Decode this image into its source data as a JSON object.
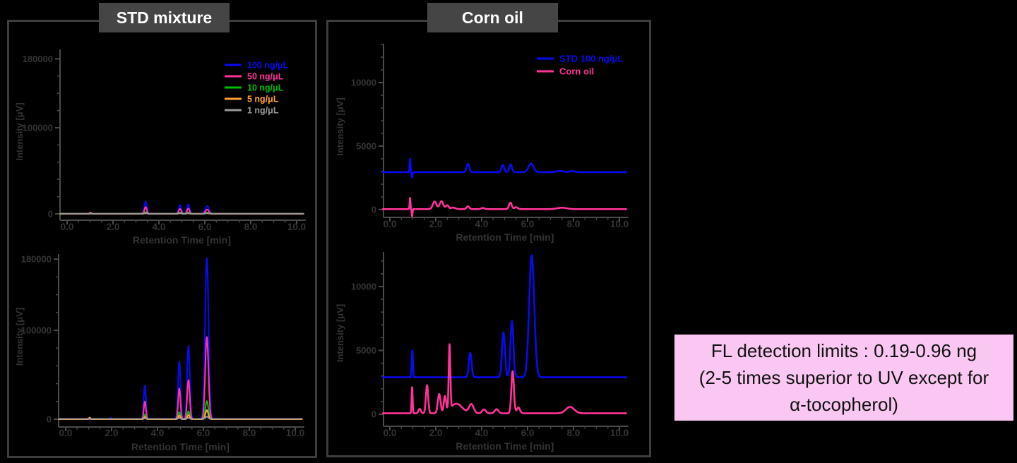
{
  "palette": {
    "blue": "#0a0af0",
    "pink": "#ff3399",
    "green": "#00be00",
    "orange": "#ffa332",
    "gray": "#999999",
    "axis": "#4a4a4a",
    "text": "#333333",
    "panel_border": "#3d3d3d",
    "title_bg": "#454545",
    "title_text": "#ffffff",
    "note_bg": "#fac7f2",
    "note_text": "#111111",
    "background": "#000000"
  },
  "panels": [
    {
      "title": "STD mixture"
    },
    {
      "title": "Corn oil"
    }
  ],
  "note_box": {
    "line1": "FL detection limits : 0.19-0.96 ng",
    "line2": "(2-5 times superior to UV except for",
    "line3": "α-tocopherol)"
  },
  "chart_data": [
    {
      "type": "line",
      "panel": "STD mixture",
      "xlabel": "Retention Time [min]",
      "ylabel": "Intensity [μV]",
      "xlim": [
        -0.3,
        10.3
      ],
      "xticks": [
        0,
        2,
        4,
        6,
        8,
        10
      ],
      "xtick_labels": [
        "0.0",
        "2.0",
        "4.0",
        "6.0",
        "8.0",
        "10.0"
      ],
      "xminor_step": 0.5,
      "ylim": [
        0,
        190000
      ],
      "yticks": [
        [
          0,
          "0"
        ],
        [
          100000,
          "100000"
        ],
        [
          180000,
          "180000"
        ]
      ],
      "yminor_step": 20000,
      "grid": false,
      "legend_position": "upper right",
      "legend": [
        {
          "label": "100 ng/μL",
          "color": "blue"
        },
        {
          "label": "50 ng/μL",
          "color": "pink"
        },
        {
          "label": "10 ng/μL",
          "color": "green"
        },
        {
          "label": "5 ng/μL",
          "color": "orange"
        },
        {
          "label": "1 ng/μL",
          "color": "gray"
        }
      ],
      "series": [
        {
          "name": "100 ng/μL",
          "color": "blue",
          "offset": 0,
          "peaks": [
            [
              1.0,
              900,
              0.025
            ],
            [
              3.42,
              14300,
              0.055
            ],
            [
              4.92,
              10300,
              0.06
            ],
            [
              5.28,
              10900,
              0.06
            ],
            [
              6.1,
              9100,
              0.08
            ]
          ]
        },
        {
          "name": "50 ng/μL",
          "color": "pink",
          "offset": 0,
          "peaks": [
            [
              1.0,
              1600,
              0.025
            ],
            [
              3.42,
              8000,
              0.05
            ],
            [
              4.92,
              5700,
              0.055
            ],
            [
              5.28,
              6100,
              0.055
            ],
            [
              6.1,
              5000,
              0.075
            ]
          ]
        },
        {
          "name": "10 ng/μL",
          "color": "green",
          "offset": 0,
          "peaks": [
            [
              3.42,
              1900,
              0.05
            ],
            [
              4.92,
              1500,
              0.05
            ],
            [
              5.28,
              1600,
              0.05
            ],
            [
              6.1,
              1400,
              0.07
            ]
          ]
        },
        {
          "name": "5 ng/μL",
          "color": "orange",
          "offset": 0,
          "peaks": [
            [
              1.05,
              900,
              0.03
            ],
            [
              3.42,
              1000,
              0.05
            ],
            [
              4.92,
              800,
              0.05
            ],
            [
              5.28,
              850,
              0.05
            ],
            [
              6.1,
              750,
              0.07
            ]
          ]
        },
        {
          "name": "1 ng/μL",
          "color": "gray",
          "offset": 300,
          "peaks": [
            [
              3.42,
              400,
              0.05
            ],
            [
              4.92,
              330,
              0.05
            ],
            [
              5.28,
              350,
              0.05
            ],
            [
              6.1,
              300,
              0.07
            ]
          ]
        }
      ]
    },
    {
      "type": "line",
      "panel": "STD mixture",
      "xlabel": "Retention Time [min]",
      "ylabel": "Intensity [μV]",
      "xlim": [
        -0.3,
        10.3
      ],
      "xticks": [
        0,
        2,
        4,
        6,
        8,
        10
      ],
      "xtick_labels": [
        "0.0",
        "2.0",
        "4.0",
        "6.0",
        "8.0",
        "10.0"
      ],
      "xminor_step": 0.5,
      "ylim": [
        0,
        184000
      ],
      "yticks": [
        [
          0,
          "0"
        ],
        [
          100000,
          "100000"
        ],
        [
          180000,
          "180000"
        ]
      ],
      "yminor_step": 20000,
      "grid": false,
      "legend_position": "none",
      "legend": [],
      "series": [
        {
          "name": "100 ng/μL",
          "color": "blue",
          "offset": 0,
          "peaks": [
            [
              1.97,
              1500,
              0.04
            ],
            [
              3.45,
              38000,
              0.05
            ],
            [
              4.95,
              65000,
              0.055
            ],
            [
              5.35,
              82500,
              0.06
            ],
            [
              6.15,
              181000,
              0.075
            ]
          ]
        },
        {
          "name": "50 ng/μL",
          "color": "pink",
          "offset": 0,
          "peaks": [
            [
              1.0,
              1200,
              0.03
            ],
            [
              3.45,
              20000,
              0.045
            ],
            [
              4.95,
              34500,
              0.05
            ],
            [
              5.35,
              44000,
              0.055
            ],
            [
              6.15,
              92500,
              0.07
            ]
          ]
        },
        {
          "name": "10 ng/μL",
          "color": "green",
          "offset": 0,
          "peaks": [
            [
              1.05,
              1500,
              0.03
            ],
            [
              3.45,
              5200,
              0.04
            ],
            [
              4.95,
              8000,
              0.045
            ],
            [
              5.35,
              9000,
              0.05
            ],
            [
              6.15,
              20500,
              0.065
            ]
          ]
        },
        {
          "name": "5 ng/μL",
          "color": "orange",
          "offset": 0,
          "peaks": [
            [
              1.05,
              1800,
              0.03
            ],
            [
              3.45,
              2700,
              0.04
            ],
            [
              4.95,
              4200,
              0.045
            ],
            [
              5.35,
              4800,
              0.05
            ],
            [
              6.15,
              10300,
              0.06
            ]
          ]
        },
        {
          "name": "1 ng/μL",
          "color": "gray",
          "offset": 400,
          "peaks": [
            [
              3.45,
              700,
              0.04
            ],
            [
              4.95,
              1000,
              0.045
            ],
            [
              5.35,
              1100,
              0.05
            ],
            [
              6.15,
              2600,
              0.06
            ]
          ]
        }
      ]
    },
    {
      "type": "line",
      "panel": "Corn oil",
      "xlabel": "Retention Time [min]",
      "ylabel": "Intensity [μV]",
      "xlim": [
        -0.3,
        10.3
      ],
      "xticks": [
        0,
        2,
        4,
        6,
        8,
        10
      ],
      "xtick_labels": [
        "0.0",
        "2.0",
        "4.0",
        "6.0",
        "8.0",
        "10.0"
      ],
      "xminor_step": 0.5,
      "ylim": [
        -800,
        13000
      ],
      "yticks": [
        [
          0,
          "0"
        ],
        [
          5000,
          "5000"
        ],
        [
          10000,
          "10000"
        ]
      ],
      "yminor_step": 1000,
      "grid": false,
      "legend_position": "upper right",
      "legend": [
        {
          "label": "STD 100 ng/μL",
          "color": "blue"
        },
        {
          "label": "Corn oil",
          "color": "pink"
        }
      ],
      "series": [
        {
          "name": "STD 100 ng/μL",
          "color": "blue",
          "offset": 2950,
          "peaks": [
            [
              0.88,
              1050,
              0.02
            ],
            [
              0.97,
              -420,
              0.02
            ],
            [
              3.4,
              650,
              0.06
            ],
            [
              4.92,
              560,
              0.06
            ],
            [
              5.26,
              600,
              0.06
            ],
            [
              6.15,
              680,
              0.11
            ],
            [
              7.4,
              90,
              0.15
            ],
            [
              7.95,
              80,
              0.12
            ]
          ]
        },
        {
          "name": "Corn oil",
          "color": "pink",
          "offset": 40,
          "peaks": [
            [
              0.88,
              890,
              0.018
            ],
            [
              0.97,
              -560,
              0.018
            ],
            [
              1.95,
              600,
              0.08
            ],
            [
              2.25,
              620,
              0.08
            ],
            [
              2.5,
              300,
              0.06
            ],
            [
              2.75,
              120,
              0.1
            ],
            [
              3.4,
              220,
              0.06
            ],
            [
              4.05,
              90,
              0.07
            ],
            [
              5.25,
              510,
              0.06
            ],
            [
              5.5,
              150,
              0.07
            ],
            [
              7.5,
              110,
              0.2
            ]
          ]
        }
      ]
    },
    {
      "type": "line",
      "panel": "Corn oil",
      "xlabel": "Retention Time [min]",
      "ylabel": "Intensity [μV]",
      "xlim": [
        -0.3,
        10.3
      ],
      "xticks": [
        0,
        2,
        4,
        6,
        8,
        10
      ],
      "xtick_labels": [
        "0.0",
        "2.0",
        "4.0",
        "6.0",
        "8.0",
        "10.0"
      ],
      "xminor_step": 0.5,
      "ylim": [
        -800,
        12700
      ],
      "yticks": [
        [
          0,
          "0"
        ],
        [
          5000,
          "5000"
        ],
        [
          10000,
          "10000"
        ]
      ],
      "yminor_step": 1000,
      "grid": false,
      "legend_position": "none",
      "legend": [],
      "series": [
        {
          "name": "STD 100 ng/μL",
          "color": "blue",
          "offset": 2900,
          "peaks": [
            [
              0.98,
              2100,
              0.025
            ],
            [
              3.5,
              1900,
              0.06
            ],
            [
              4.95,
              3500,
              0.065
            ],
            [
              5.32,
              4400,
              0.065
            ],
            [
              6.18,
              9550,
              0.11
            ]
          ]
        },
        {
          "name": "Corn oil",
          "color": "pink",
          "offset": 80,
          "peaks": [
            [
              0.97,
              2050,
              0.022
            ],
            [
              1.3,
              350,
              0.05
            ],
            [
              1.62,
              2200,
              0.05
            ],
            [
              2.15,
              1500,
              0.06
            ],
            [
              2.4,
              1250,
              0.05
            ],
            [
              2.6,
              5050,
              0.035
            ],
            [
              2.9,
              750,
              0.25
            ],
            [
              3.55,
              700,
              0.1
            ],
            [
              4.1,
              300,
              0.08
            ],
            [
              4.65,
              320,
              0.08
            ],
            [
              5.35,
              3300,
              0.055
            ],
            [
              5.6,
              450,
              0.07
            ],
            [
              7.85,
              500,
              0.18
            ]
          ]
        }
      ]
    }
  ]
}
